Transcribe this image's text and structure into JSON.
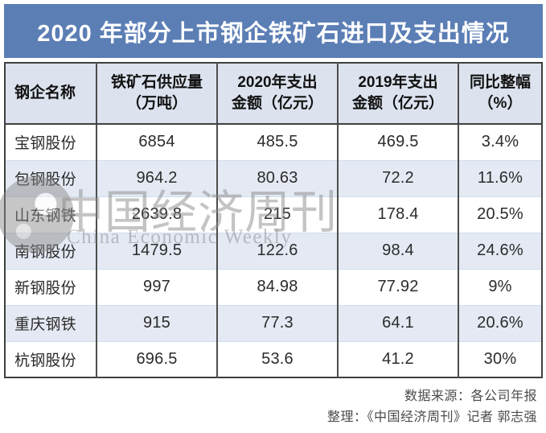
{
  "title": "2020 年部分上市钢企铁矿石进口及支出情况",
  "colors": {
    "title_bg": "#5b7eb5",
    "header_bg": "#dce3ee",
    "row_bg": "#ffffff",
    "row_alt_bg": "#e4e9f3",
    "border_dark": "#3f3f3f",
    "divider_light": "#cfdeee",
    "footer_text": "#4b4b4b",
    "cell_text": "#2b2b2b",
    "watermark_gray": "#8a8a8a"
  },
  "table": {
    "headers": [
      "钢企名称",
      "铁矿石供应量\n（万吨）",
      "2020年支出\n金额（亿元）",
      "2019年支出\n金额（亿元）",
      "同比整幅\n（%）"
    ],
    "rows": [
      [
        "宝钢股份",
        "6854",
        "485.5",
        "469.5",
        "3.4%"
      ],
      [
        "包钢股份",
        "964.2",
        "80.63",
        "72.2",
        "11.6%"
      ],
      [
        "山东钢铁",
        "2639.8",
        "215",
        "178.4",
        "20.5%"
      ],
      [
        "南钢股份",
        "1479.5",
        "122.6",
        "98.4",
        "24.6%"
      ],
      [
        "新钢股份",
        "997",
        "84.98",
        "77.92",
        "9%"
      ],
      [
        "重庆钢铁",
        "915",
        "77.3",
        "64.1",
        "20.6%"
      ],
      [
        "杭钢股份",
        "696.5",
        "53.6",
        "41.2",
        "30%"
      ]
    ]
  },
  "watermark": {
    "cn": "中国经济周刊",
    "en": "China Economic Weekly"
  },
  "footer": {
    "source": "数据来源：各公司年报",
    "editor": "整理：《中国经济周刊》记者  郭志强"
  },
  "chart_data": {
    "type": "table",
    "title": "2020 年部分上市钢企铁矿石进口及支出情况",
    "columns": [
      "钢企名称",
      "铁矿石供应量（万吨）",
      "2020年支出金额（亿元）",
      "2019年支出金额（亿元）",
      "同比整幅（%）"
    ],
    "rows": [
      [
        "宝钢股份",
        6854,
        485.5,
        469.5,
        3.4
      ],
      [
        "包钢股份",
        964.2,
        80.63,
        72.2,
        11.6
      ],
      [
        "山东钢铁",
        2639.8,
        215,
        178.4,
        20.5
      ],
      [
        "南钢股份",
        1479.5,
        122.6,
        98.4,
        24.6
      ],
      [
        "新钢股份",
        997,
        84.98,
        77.92,
        9
      ],
      [
        "重庆钢铁",
        915,
        77.3,
        64.1,
        20.6
      ],
      [
        "杭钢股份",
        696.5,
        53.6,
        41.2,
        30
      ]
    ],
    "units": {
      "同比整幅": "%"
    },
    "source": "各公司年报",
    "credit": "《中国经济周刊》记者 郭志强"
  }
}
